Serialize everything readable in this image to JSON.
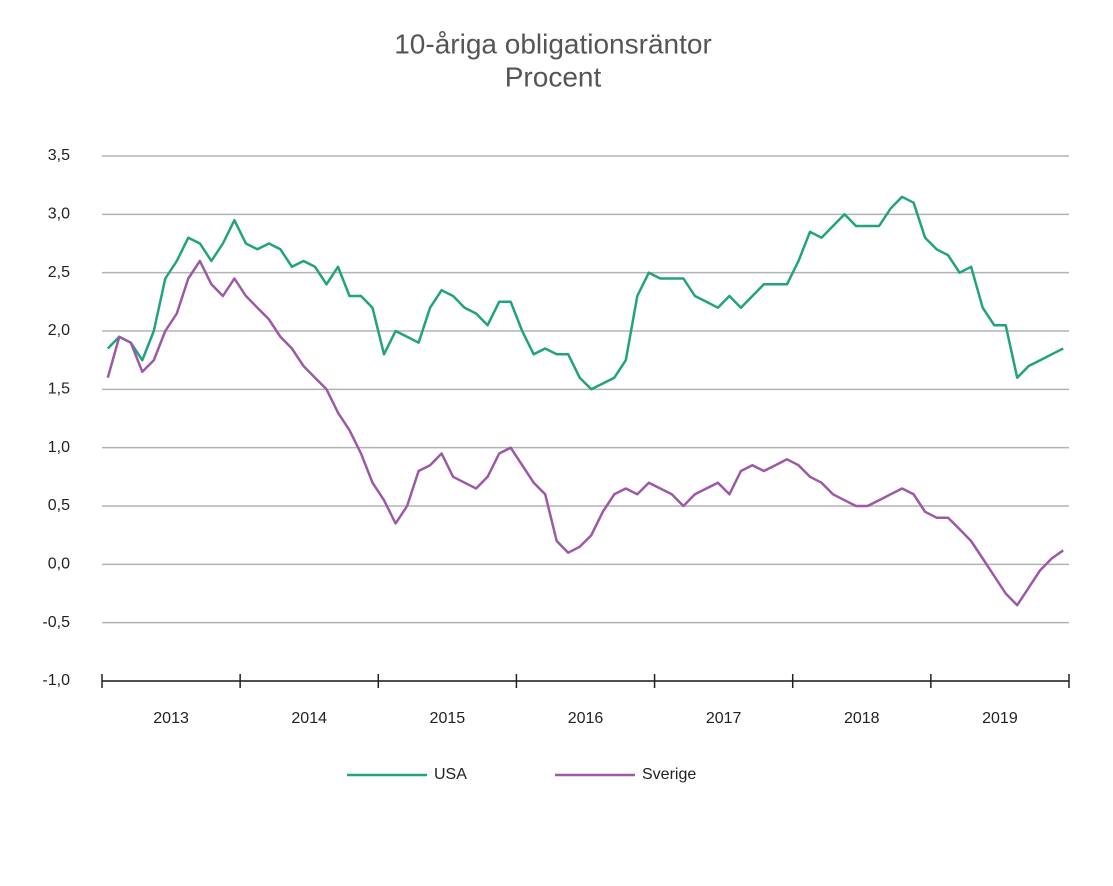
{
  "chart_data": {
    "type": "line",
    "title": "10-åriga obligationsräntor",
    "subtitle": "Procent",
    "categories": [
      null,
      null,
      null,
      null,
      null,
      null,
      "2013",
      null,
      null,
      null,
      null,
      null,
      null,
      null,
      null,
      null,
      null,
      null,
      "2014",
      null,
      null,
      null,
      null,
      null,
      null,
      null,
      null,
      null,
      null,
      null,
      "2015",
      null,
      null,
      null,
      null,
      null,
      null,
      null,
      null,
      null,
      null,
      null,
      "2016",
      null,
      null,
      null,
      null,
      null,
      null,
      null,
      null,
      null,
      null,
      null,
      "2017",
      null,
      null,
      null,
      null,
      null,
      null,
      null,
      null,
      null,
      null,
      null,
      "2018",
      null,
      null,
      null,
      null,
      null,
      null,
      null,
      null,
      null,
      null,
      null,
      "2019",
      null,
      null,
      null,
      null,
      null
    ],
    "series": [
      {
        "name": "USA",
        "color": "#22a27f",
        "values": [
          1.85,
          1.95,
          1.9,
          1.75,
          2.0,
          2.45,
          2.6,
          2.8,
          2.75,
          2.6,
          2.75,
          2.95,
          2.75,
          2.7,
          2.75,
          2.7,
          2.55,
          2.6,
          2.55,
          2.4,
          2.55,
          2.3,
          2.3,
          2.2,
          1.8,
          2.0,
          1.95,
          1.9,
          2.2,
          2.35,
          2.3,
          2.2,
          2.15,
          2.05,
          2.25,
          2.25,
          2.0,
          1.8,
          1.85,
          1.8,
          1.8,
          1.6,
          1.5,
          1.55,
          1.6,
          1.75,
          2.3,
          2.5,
          2.45,
          2.45,
          2.45,
          2.3,
          2.25,
          2.2,
          2.3,
          2.2,
          2.3,
          2.4,
          2.4,
          2.4,
          2.6,
          2.85,
          2.8,
          2.9,
          3.0,
          2.9,
          2.9,
          2.9,
          3.05,
          3.15,
          3.1,
          2.8,
          2.7,
          2.65,
          2.5,
          2.55,
          2.2,
          2.05,
          2.05,
          1.6,
          1.7,
          1.75,
          1.8,
          1.85
        ]
      },
      {
        "name": "Sverige",
        "color": "#9b59a6",
        "values": [
          1.6,
          1.95,
          1.9,
          1.65,
          1.75,
          2.0,
          2.15,
          2.45,
          2.6,
          2.4,
          2.3,
          2.45,
          2.3,
          2.2,
          2.1,
          1.95,
          1.85,
          1.7,
          1.6,
          1.5,
          1.3,
          1.15,
          0.95,
          0.7,
          0.55,
          0.35,
          0.5,
          0.8,
          0.85,
          0.95,
          0.75,
          0.7,
          0.65,
          0.75,
          0.95,
          1.0,
          0.85,
          0.7,
          0.6,
          0.2,
          0.1,
          0.15,
          0.25,
          0.45,
          0.6,
          0.65,
          0.6,
          0.7,
          0.65,
          0.6,
          0.5,
          0.6,
          0.65,
          0.7,
          0.6,
          0.8,
          0.85,
          0.8,
          0.85,
          0.9,
          0.85,
          0.75,
          0.7,
          0.6,
          0.55,
          0.5,
          0.5,
          0.55,
          0.6,
          0.65,
          0.6,
          0.45,
          0.4,
          0.4,
          0.3,
          0.2,
          0.05,
          -0.1,
          -0.25,
          -0.35,
          -0.2,
          -0.05,
          0.05,
          0.12
        ]
      }
    ],
    "ylim": [
      -1.0,
      3.5
    ],
    "yticks": [
      {
        "value": -1.0,
        "label": "-1,0"
      },
      {
        "value": -0.5,
        "label": "-0,5"
      },
      {
        "value": 0,
        "label": "0,0"
      },
      {
        "value": 0.5,
        "label": "0,5"
      },
      {
        "value": 1.0,
        "label": "1,0"
      },
      {
        "value": 1.5,
        "label": "1,5"
      },
      {
        "value": 2.0,
        "label": "2,0"
      },
      {
        "value": 2.5,
        "label": "2,5"
      },
      {
        "value": 3.0,
        "label": "3,0"
      },
      {
        "value": 3.5,
        "label": "3,5"
      }
    ],
    "grid": true
  }
}
